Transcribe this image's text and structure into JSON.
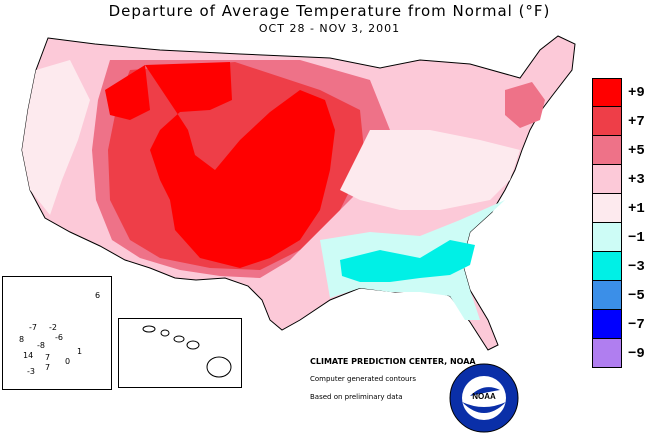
{
  "title": "Departure of Average Temperature from Normal (°F)",
  "subtitle": "OCT 28 - NOV  3, 2001",
  "legend": [
    {
      "label": "+9",
      "color": "#ff0000"
    },
    {
      "label": "+7",
      "color": "#ee3e48"
    },
    {
      "label": "+5",
      "color": "#ee7288"
    },
    {
      "label": "+3",
      "color": "#fcc9d8"
    },
    {
      "label": "+1",
      "color": "#fdeaee"
    },
    {
      "label": "−1",
      "color": "#cdfcf6"
    },
    {
      "label": "−3",
      "color": "#00f0e6"
    },
    {
      "label": "−5",
      "color": "#3b8fe8"
    },
    {
      "label": "−7",
      "color": "#0000ff"
    },
    {
      "label": "−9",
      "color": "#b07ef0"
    }
  ],
  "credit": "CLIMATE PREDICTION CENTER, NOAA",
  "note_contours": "Computer generated contours",
  "note_data": "Based on preliminary data",
  "logo_text": "NOAA",
  "alaska_values": [
    "6",
    "-7",
    "-2",
    "-6",
    "8",
    "-8",
    "1",
    "14",
    "7",
    "0",
    "-3",
    "7"
  ]
}
